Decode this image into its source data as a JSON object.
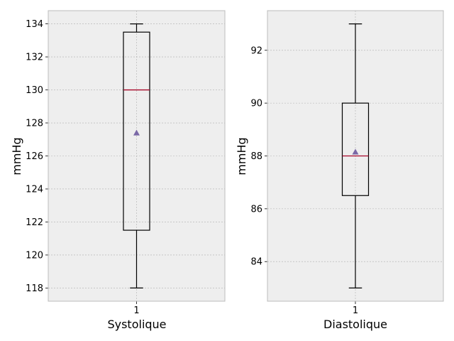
{
  "chart_data": [
    {
      "type": "box",
      "categories": [
        "1"
      ],
      "xlabel": "Systolique",
      "ylabel": "mmHg",
      "ylim": [
        117.2,
        134.8
      ],
      "yticks": [
        118,
        120,
        122,
        124,
        126,
        128,
        130,
        132,
        134
      ],
      "grid": true,
      "boxes": [
        {
          "category": "1",
          "whisker_low": 118,
          "q1": 121.5,
          "median": 130,
          "q3": 133.5,
          "whisker_high": 134,
          "mean": 127.4
        }
      ]
    },
    {
      "type": "box",
      "categories": [
        "1"
      ],
      "xlabel": "Diastolique",
      "ylabel": "mmHg",
      "ylim": [
        82.5,
        93.5
      ],
      "yticks": [
        84,
        86,
        88,
        90,
        92
      ],
      "grid": true,
      "boxes": [
        {
          "category": "1",
          "whisker_low": 83,
          "q1": 86.5,
          "median": 88,
          "q3": 90,
          "whisker_high": 93,
          "mean": 88.15
        }
      ]
    }
  ],
  "colors": {
    "panel_background": "#eeeeee",
    "frame": "#bcbcbc",
    "grid": "#b0b0b0",
    "box": "#000000",
    "median": "#a60628",
    "mean_marker": "#7a68a6"
  }
}
